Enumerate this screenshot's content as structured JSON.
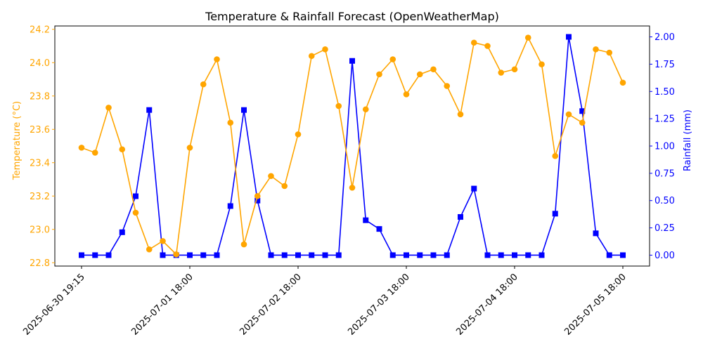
{
  "chart_data": {
    "type": "line",
    "title": "Temperature & Rainfall Forecast (OpenWeatherMap)",
    "xlabel": "",
    "x_ticks": [
      "2025-06-30 19:15",
      "2025-07-01 18:00",
      "2025-07-02 18:00",
      "2025-07-03 18:00",
      "2025-07-04 18:00",
      "2025-07-05 18:00"
    ],
    "x_tick_index": [
      0,
      8,
      16,
      24,
      32,
      40
    ],
    "left_axis": {
      "label": "Temperature (°C)",
      "color": "#FFA500",
      "ylim": [
        22.78,
        24.22
      ],
      "ticks": [
        22.8,
        23.0,
        23.2,
        23.4,
        23.6,
        23.8,
        24.0,
        24.2
      ],
      "tick_labels": [
        "22.8",
        "23.0",
        "23.2",
        "23.4",
        "23.6",
        "23.8",
        "24.0",
        "24.2"
      ]
    },
    "right_axis": {
      "label": "Rainfall (mm)",
      "color": "#0000FF",
      "ylim": [
        -0.1,
        2.1
      ],
      "ticks": [
        0,
        0.25,
        0.5,
        0.75,
        1.0,
        1.25,
        1.5,
        1.75,
        2.0
      ],
      "tick_labels": [
        "0.00",
        "0.25",
        "0.50",
        "0.75",
        "1.00",
        "1.25",
        "1.50",
        "1.75",
        "2.00"
      ]
    },
    "series": [
      {
        "name": "Temperature",
        "axis": "left",
        "color": "#FFA500",
        "marker": "circle",
        "values": [
          23.49,
          23.46,
          23.73,
          23.48,
          23.1,
          22.88,
          22.93,
          22.85,
          23.49,
          23.87,
          24.02,
          23.64,
          22.91,
          23.2,
          23.32,
          23.26,
          23.57,
          24.04,
          24.08,
          23.74,
          23.25,
          23.72,
          23.93,
          24.02,
          23.81,
          23.93,
          23.96,
          23.86,
          23.69,
          24.12,
          24.1,
          23.94,
          23.96,
          24.15,
          23.99,
          23.44,
          23.69,
          23.64,
          24.08,
          24.06,
          23.88
        ]
      },
      {
        "name": "Rainfall",
        "axis": "right",
        "color": "#0000FF",
        "marker": "square",
        "values": [
          0,
          0,
          0,
          0.21,
          0.54,
          1.33,
          0,
          0,
          0,
          0,
          0,
          0.45,
          1.33,
          0.5,
          0,
          0,
          0,
          0,
          0,
          0,
          1.78,
          0.32,
          0.24,
          0,
          0,
          0,
          0,
          0,
          0.35,
          0.61,
          0,
          0,
          0,
          0,
          0,
          0.38,
          2.0,
          1.32,
          0.2,
          0,
          0
        ]
      }
    ]
  }
}
